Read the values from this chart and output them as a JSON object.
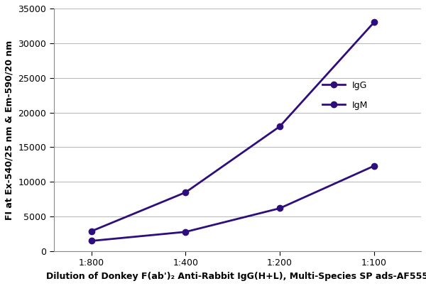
{
  "x_labels": [
    "1:800",
    "1:400",
    "1:200",
    "1:100"
  ],
  "IgG_values": [
    2900,
    8500,
    18000,
    33000
  ],
  "IgM_values": [
    1500,
    2800,
    6200,
    12300
  ],
  "line_color_IgG": "#2E0D7D",
  "line_color_IgM": "#4B0082",
  "marker": "o",
  "markersize": 6,
  "linewidth": 2.0,
  "ylabel": "FI at Ex-540/25 nm & Em-590/20 nm",
  "xlabel": "Dilution of Donkey F(ab')₂ Anti-Rabbit IgG(H+L), Multi-Species SP ads-AF555",
  "ylim": [
    0,
    35000
  ],
  "yticks": [
    0,
    5000,
    10000,
    15000,
    20000,
    25000,
    30000,
    35000
  ],
  "legend_labels": [
    "IgG",
    "IgM"
  ],
  "background_color": "#ffffff",
  "grid_color": "#bbbbbb",
  "axis_label_fontsize": 9,
  "tick_fontsize": 9,
  "legend_fontsize": 9,
  "xlabel_fontsize": 9
}
